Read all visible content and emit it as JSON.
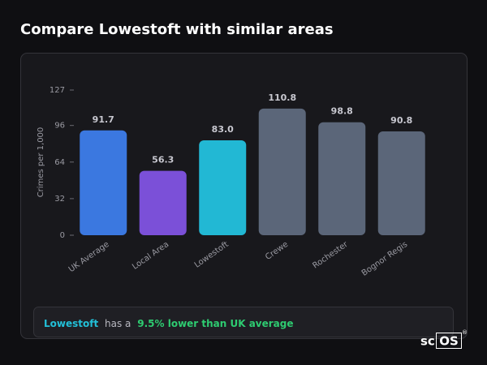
{
  "chart_data": {
    "type": "bar",
    "title": "Compare Lowestoft with similar areas",
    "y_label": "Crimes per 1,000",
    "categories": [
      "UK Average",
      "Local Area",
      "Lowestoft",
      "Crewe",
      "Rochester",
      "Bognor Regis"
    ],
    "values": [
      91.7,
      56.3,
      83.0,
      110.8,
      98.8,
      90.8
    ],
    "value_labels": [
      "91.7",
      "56.3",
      "83.0",
      "110.8",
      "98.8",
      "90.8"
    ],
    "colors": [
      "#3b78e0",
      "#7b50d8",
      "#22b8d4",
      "#5b6679",
      "#5b6679",
      "#5b6679"
    ],
    "ylim": [
      0,
      127
    ],
    "yticks": [
      0,
      32,
      64,
      96,
      127
    ],
    "grid": false
  },
  "summary": {
    "area": "Lowestoft",
    "text": "has a",
    "highlight": "9.5% lower than UK average"
  },
  "logo": {
    "prefix": "sc",
    "boxed": "OS",
    "mark": "®"
  }
}
